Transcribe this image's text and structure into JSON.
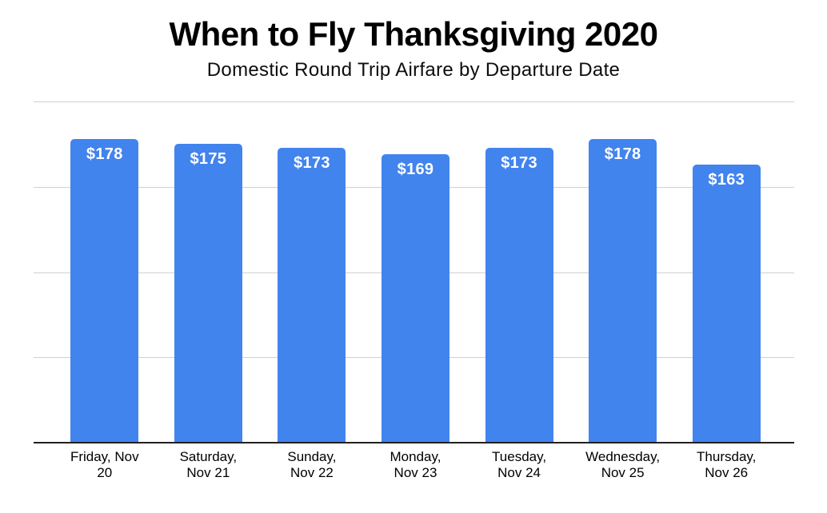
{
  "header": {
    "title": "When to Fly Thanksgiving 2020",
    "subtitle": "Domestic Round Trip Airfare by Departure Date"
  },
  "chart_data": {
    "type": "bar",
    "title": "When to Fly Thanksgiving 2020",
    "subtitle": "Domestic Round Trip Airfare by Departure Date",
    "categories": [
      "Friday, Nov 20",
      "Saturday, Nov 21",
      "Sunday, Nov 22",
      "Monday, Nov 23",
      "Tuesday, Nov 24",
      "Wednesday, Nov 25",
      "Thursday, Nov 26"
    ],
    "category_lines": [
      [
        "Friday, Nov",
        "20"
      ],
      [
        "Saturday,",
        "Nov 21"
      ],
      [
        "Sunday,",
        "Nov 22"
      ],
      [
        "Monday,",
        "Nov 23"
      ],
      [
        "Tuesday,",
        "Nov 24"
      ],
      [
        "Wednesday,",
        "Nov 25"
      ],
      [
        "Thursday,",
        "Nov 26"
      ]
    ],
    "values": [
      178,
      175,
      173,
      169,
      173,
      178,
      163
    ],
    "data_labels": [
      "$178",
      "$175",
      "$173",
      "$169",
      "$173",
      "$178",
      "$163"
    ],
    "xlabel": "",
    "ylabel": "",
    "ylim": [
      0,
      200
    ],
    "grid_step": 50,
    "grid": true,
    "y_tick_labels_shown": false,
    "legend_position": "none",
    "colors": {
      "bar": "#4284EE",
      "bar_label": "#ffffff",
      "gridline": "#d0d0d0",
      "axis_line": "#212121",
      "text": "#000000"
    }
  }
}
